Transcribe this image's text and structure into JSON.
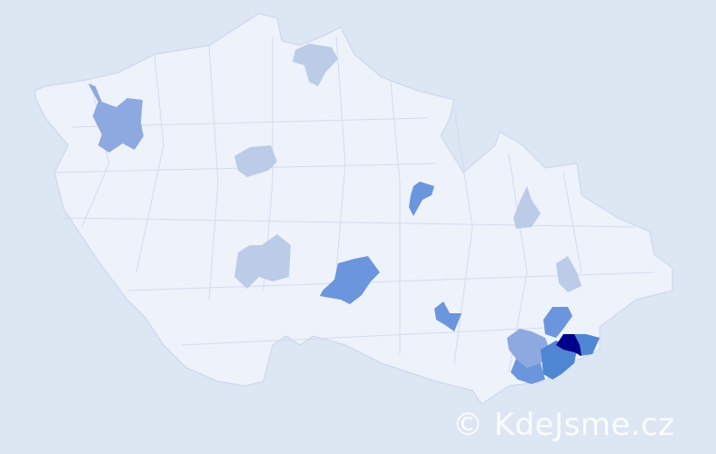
{
  "map": {
    "colors": {
      "background": "#dde6f3",
      "country": "#eef2fa",
      "border": "#c9d4ee",
      "level1": "#bccbe7",
      "level2": "#8ea9e0",
      "level3": "#6b95dc",
      "level4": "#4f86d3",
      "max": "#00008b"
    }
  },
  "watermark": {
    "text": "© KdeJsme.cz"
  }
}
